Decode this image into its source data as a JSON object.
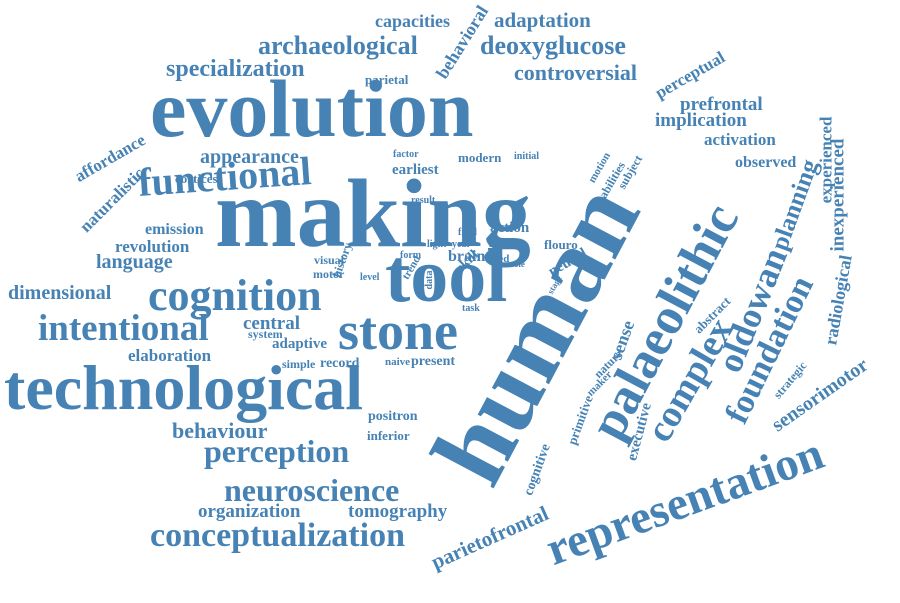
{
  "cloud": {
    "color": "#4682b4",
    "words": [
      "evolution",
      "making",
      "human",
      "tool",
      "technological",
      "stone",
      "palaeolithic",
      "representation",
      "cognition",
      "functional",
      "intentional",
      "oldowan",
      "complex",
      "perception",
      "neuroscience",
      "conceptualization",
      "foundation",
      "archaeological",
      "deoxyglucose",
      "specialization",
      "controversial",
      "adaptation",
      "capacities",
      "behavioral",
      "parietal",
      "perceptual",
      "prefrontal",
      "implication",
      "activation",
      "experienced",
      "observed",
      "appearance",
      "affordance",
      "naturalistic",
      "cortices",
      "emission",
      "revolution",
      "language",
      "dimensional",
      "central",
      "system",
      "adaptive",
      "elaboration",
      "simple",
      "record",
      "naive",
      "present",
      "behaviour",
      "positron",
      "inferior",
      "visual",
      "organization",
      "tomography",
      "parietofrontal",
      "planning",
      "inexperienced",
      "radiological",
      "sensorimotor",
      "strategic",
      "sense",
      "abstract",
      "executive",
      "cognitive",
      "primitive",
      "maker",
      "nature",
      "earliest",
      "factor",
      "modern",
      "initial",
      "motion",
      "abilities",
      "subject",
      "result",
      "action",
      "brain",
      "skill",
      "tracer",
      "flouro",
      "field",
      "light",
      "year",
      "shed",
      "form",
      "role",
      "history",
      "motor",
      "level",
      "trend",
      "data",
      "neural",
      "stage",
      "task"
    ]
  }
}
